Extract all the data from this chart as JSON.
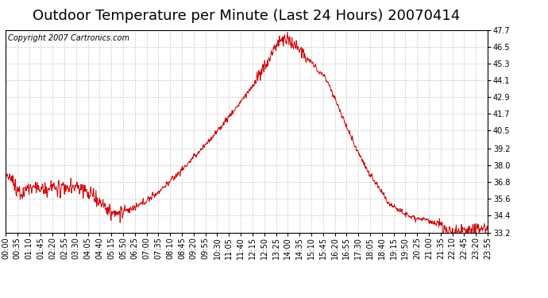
{
  "title": "Outdoor Temperature per Minute (Last 24 Hours) 20070414",
  "copyright_text": "Copyright 2007 Cartronics.com",
  "line_color": "#cc0000",
  "background_color": "#ffffff",
  "plot_bg_color": "#ffffff",
  "grid_color": "#bbbbbb",
  "yticks": [
    33.2,
    34.4,
    35.6,
    36.8,
    38.0,
    39.2,
    40.5,
    41.7,
    42.9,
    44.1,
    45.3,
    46.5,
    47.7
  ],
  "ymin": 33.2,
  "ymax": 47.7,
  "title_fontsize": 13,
  "copyright_fontsize": 7,
  "tick_fontsize": 7,
  "xtick_labels": [
    "00:00",
    "00:35",
    "01:10",
    "01:45",
    "02:20",
    "02:55",
    "03:30",
    "04:05",
    "04:40",
    "05:15",
    "05:50",
    "06:25",
    "07:00",
    "07:35",
    "08:10",
    "08:45",
    "09:20",
    "09:55",
    "10:30",
    "11:05",
    "11:40",
    "12:15",
    "12:50",
    "13:25",
    "14:00",
    "14:35",
    "15:10",
    "15:45",
    "16:20",
    "16:55",
    "17:30",
    "18:05",
    "18:40",
    "19:15",
    "19:50",
    "20:25",
    "21:00",
    "21:35",
    "22:10",
    "22:45",
    "23:20",
    "23:55"
  ]
}
